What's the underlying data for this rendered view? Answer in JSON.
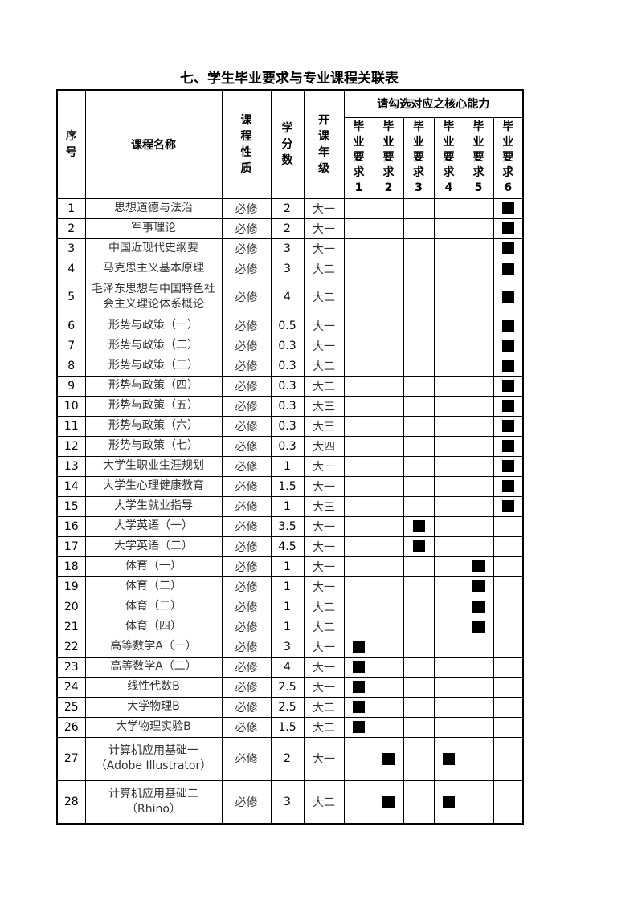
{
  "title": "七、学生毕业要求与专业课程关联表",
  "headers": {
    "index": "序号",
    "name": "课程名称",
    "type": "课程性质",
    "credits": "学分数",
    "grade": "开课年级",
    "group": "请勾选对应之核心能力",
    "requirements": [
      "毕业要求1",
      "毕业要求2",
      "毕业要求3",
      "毕业要求4",
      "毕业要求5",
      "毕业要求6"
    ]
  },
  "rows": [
    {
      "no": "1",
      "name": "思想道德与法治",
      "type": "必修",
      "credits": "2",
      "grade": "大一",
      "req": [
        6
      ]
    },
    {
      "no": "2",
      "name": "军事理论",
      "type": "必修",
      "credits": "2",
      "grade": "大一",
      "req": [
        6
      ]
    },
    {
      "no": "3",
      "name": "中国近现代史纲要",
      "type": "必修",
      "credits": "3",
      "grade": "大一",
      "req": [
        6
      ]
    },
    {
      "no": "4",
      "name": "马克思主义基本原理",
      "type": "必修",
      "credits": "3",
      "grade": "大二",
      "req": [
        6
      ]
    },
    {
      "no": "5",
      "name": "毛泽东思想与中国特色社会主义理论体系概论",
      "type": "必修",
      "credits": "4",
      "grade": "大二",
      "req": [
        6
      ]
    },
    {
      "no": "6",
      "name": "形势与政策（一）",
      "type": "必修",
      "credits": "0.5",
      "grade": "大一",
      "req": [
        6
      ]
    },
    {
      "no": "7",
      "name": "形势与政策（二）",
      "type": "必修",
      "credits": "0.3",
      "grade": "大一",
      "req": [
        6
      ]
    },
    {
      "no": "8",
      "name": "形势与政策（三）",
      "type": "必修",
      "credits": "0.3",
      "grade": "大二",
      "req": [
        6
      ]
    },
    {
      "no": "9",
      "name": "形势与政策（四）",
      "type": "必修",
      "credits": "0.3",
      "grade": "大二",
      "req": [
        6
      ]
    },
    {
      "no": "10",
      "name": "形势与政策（五）",
      "type": "必修",
      "credits": "0.3",
      "grade": "大三",
      "req": [
        6
      ]
    },
    {
      "no": "11",
      "name": "形势与政策（六）",
      "type": "必修",
      "credits": "0.3",
      "grade": "大三",
      "req": [
        6
      ]
    },
    {
      "no": "12",
      "name": "形势与政策（七）",
      "type": "必修",
      "credits": "0.3",
      "grade": "大四",
      "req": [
        6
      ]
    },
    {
      "no": "13",
      "name": "大学生职业生涯规划",
      "type": "必修",
      "credits": "1",
      "grade": "大一",
      "req": [
        6
      ]
    },
    {
      "no": "14",
      "name": "大学生心理健康教育",
      "type": "必修",
      "credits": "1.5",
      "grade": "大一",
      "req": [
        6
      ]
    },
    {
      "no": "15",
      "name": "大学生就业指导",
      "type": "必修",
      "credits": "1",
      "grade": "大三",
      "req": [
        6
      ]
    },
    {
      "no": "16",
      "name": "大学英语（一）",
      "type": "必修",
      "credits": "3.5",
      "grade": "大一",
      "req": [
        3
      ]
    },
    {
      "no": "17",
      "name": "大学英语（二）",
      "type": "必修",
      "credits": "4.5",
      "grade": "大一",
      "req": [
        3
      ]
    },
    {
      "no": "18",
      "name": "体育（一）",
      "type": "必修",
      "credits": "1",
      "grade": "大一",
      "req": [
        5
      ]
    },
    {
      "no": "19",
      "name": "体育（二）",
      "type": "必修",
      "credits": "1",
      "grade": "大一",
      "req": [
        5
      ]
    },
    {
      "no": "20",
      "name": "体育（三）",
      "type": "必修",
      "credits": "1",
      "grade": "大二",
      "req": [
        5
      ]
    },
    {
      "no": "21",
      "name": "体育（四）",
      "type": "必修",
      "credits": "1",
      "grade": "大二",
      "req": [
        5
      ]
    },
    {
      "no": "22",
      "name": "高等数学A（一）",
      "type": "必修",
      "credits": "3",
      "grade": "大一",
      "req": [
        1
      ]
    },
    {
      "no": "23",
      "name": "高等数学A（二）",
      "type": "必修",
      "credits": "4",
      "grade": "大一",
      "req": [
        1
      ]
    },
    {
      "no": "24",
      "name": "线性代数B",
      "type": "必修",
      "credits": "2.5",
      "grade": "大一",
      "req": [
        1
      ]
    },
    {
      "no": "25",
      "name": "大学物理B",
      "type": "必修",
      "credits": "2.5",
      "grade": "大二",
      "req": [
        1
      ]
    },
    {
      "no": "26",
      "name": "大学物理实验B",
      "type": "必修",
      "credits": "1.5",
      "grade": "大二",
      "req": [
        1
      ]
    },
    {
      "no": "27",
      "name": "计算机应用基础一（Adobe Illustrator）",
      "type": "必修",
      "credits": "2",
      "grade": "大一",
      "req": [
        2,
        4
      ]
    },
    {
      "no": "28",
      "name": "计算机应用基础二（Rhino）",
      "type": "必修",
      "credits": "3",
      "grade": "大二",
      "req": [
        2,
        4
      ]
    }
  ]
}
